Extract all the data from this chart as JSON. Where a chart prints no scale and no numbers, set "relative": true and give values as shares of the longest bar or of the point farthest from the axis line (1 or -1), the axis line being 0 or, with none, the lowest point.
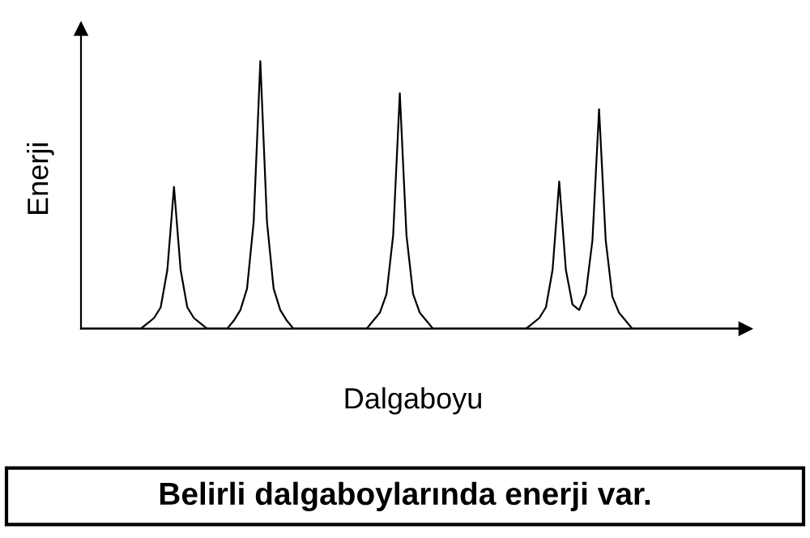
{
  "chart_data": {
    "type": "line",
    "relative": true,
    "xlabel": "Dalgaboyu",
    "ylabel": "Enerji",
    "annotations": [
      "Belirli dalgaboylarında enerji var."
    ],
    "categories": [
      null,
      null,
      null,
      null,
      null,
      null,
      null,
      null,
      null,
      null,
      null,
      null,
      null,
      null,
      null,
      null,
      null,
      null,
      null,
      null,
      null,
      null,
      null,
      null,
      null,
      null,
      null,
      null,
      null,
      null,
      null,
      null,
      null,
      null,
      null,
      null,
      null,
      null,
      null,
      null,
      null,
      null,
      null,
      null,
      null,
      null,
      null,
      null,
      null,
      null,
      null,
      null,
      null,
      null,
      null,
      null,
      null,
      null,
      null,
      null,
      null,
      null,
      null,
      null,
      null,
      null,
      null,
      null,
      null,
      null,
      null,
      null,
      null,
      null,
      null,
      null,
      null,
      null,
      null,
      null,
      null,
      null,
      null,
      null,
      null,
      null,
      null,
      null,
      null,
      null,
      null,
      null,
      null,
      null,
      null,
      null,
      null,
      null,
      null,
      null,
      null
    ],
    "series": [
      {
        "color": "#000000",
        "values": [
          0,
          0,
          0,
          0,
          0,
          0,
          0,
          0,
          0,
          0,
          0.02,
          0.04,
          0.08,
          0.22,
          0.53,
          0.22,
          0.08,
          0.04,
          0.02,
          0,
          0,
          0,
          0,
          0.03,
          0.07,
          0.15,
          0.4,
          1,
          0.4,
          0.15,
          0.07,
          0.03,
          0,
          0,
          0,
          0,
          0,
          0,
          0,
          0,
          0,
          0,
          0,
          0,
          0.03,
          0.06,
          0.13,
          0.35,
          0.88,
          0.35,
          0.13,
          0.06,
          0.03,
          0,
          0,
          0,
          0,
          0,
          0,
          0,
          0,
          0,
          0,
          0,
          0,
          0,
          0,
          0,
          0.02,
          0.04,
          0.08,
          0.22,
          0.55,
          0.22,
          0.09,
          0.07,
          0.13,
          0.33,
          0.82,
          0.33,
          0.12,
          0.06,
          0.03,
          0,
          0,
          0,
          0,
          0,
          0,
          0,
          0,
          0,
          0,
          0,
          0,
          0,
          0,
          0,
          0,
          0,
          0
        ]
      }
    ],
    "grid": false,
    "marker": "none",
    "line_style": "solid",
    "tick_labels": false
  }
}
